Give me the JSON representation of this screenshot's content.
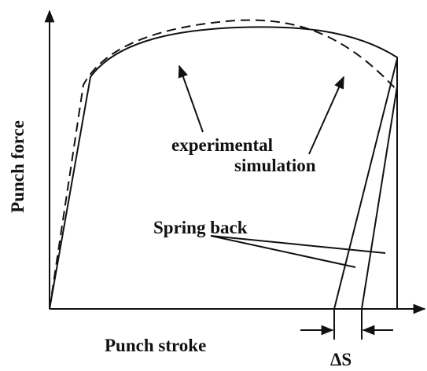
{
  "axes": {
    "y_label": "Punch force",
    "x_label": "Punch stroke"
  },
  "annotations": {
    "experimental": "experimental",
    "simulation": "simulation",
    "spring_back": "Spring back",
    "delta_s": "ΔS"
  }
}
